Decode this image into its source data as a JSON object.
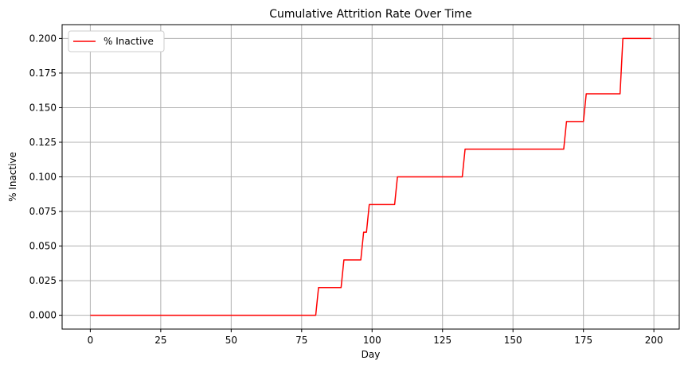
{
  "chart_data": {
    "type": "line",
    "title": "Cumulative Attrition Rate Over Time",
    "xlabel": "Day",
    "ylabel": "% Inactive",
    "xlim": [
      -10,
      209
    ],
    "ylim": [
      -0.01,
      0.21
    ],
    "xticks": [
      0,
      25,
      50,
      75,
      100,
      125,
      150,
      175,
      200
    ],
    "yticks": [
      0.0,
      0.025,
      0.05,
      0.075,
      0.1,
      0.125,
      0.15,
      0.175,
      0.2
    ],
    "ytick_labels": [
      "0.000",
      "0.025",
      "0.050",
      "0.075",
      "0.100",
      "0.125",
      "0.150",
      "0.175",
      "0.200"
    ],
    "xtick_labels": [
      "0",
      "25",
      "50",
      "75",
      "100",
      "125",
      "150",
      "175",
      "200"
    ],
    "grid": true,
    "legend_position": "top-left",
    "series": [
      {
        "name": "% Inactive",
        "color": "#ff0000",
        "x": [
          0,
          80,
          81,
          89,
          90,
          96,
          97,
          98,
          99,
          108,
          109,
          132,
          133,
          168,
          169,
          175,
          176,
          188,
          189,
          199
        ],
        "y": [
          0.0,
          0.0,
          0.02,
          0.02,
          0.04,
          0.04,
          0.06,
          0.06,
          0.08,
          0.08,
          0.1,
          0.1,
          0.12,
          0.12,
          0.14,
          0.14,
          0.16,
          0.16,
          0.2,
          0.2
        ]
      }
    ]
  }
}
